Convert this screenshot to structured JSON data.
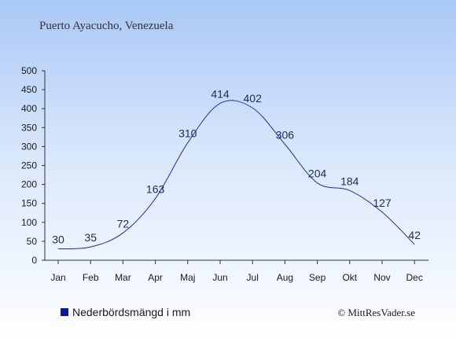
{
  "chart_data": {
    "type": "line",
    "title": "Puerto Ayacucho, Venezuela",
    "categories": [
      "Jan",
      "Feb",
      "Mar",
      "Apr",
      "Maj",
      "Jun",
      "Jul",
      "Aug",
      "Sep",
      "Okt",
      "Nov",
      "Dec"
    ],
    "series": [
      {
        "name": "Nederbördsmängd i mm",
        "values": [
          30,
          35,
          72,
          163,
          310,
          414,
          402,
          306,
          204,
          184,
          127,
          42
        ]
      }
    ],
    "yticks": [
      0,
      50,
      100,
      150,
      200,
      250,
      300,
      350,
      400,
      450,
      500
    ],
    "ylim": [
      0,
      500
    ],
    "grid": false,
    "legend_position": "bottom-left",
    "line_color": "#1f2fa6",
    "legend_color": "#0a1aa8"
  },
  "credit": "© MittResVader.se"
}
